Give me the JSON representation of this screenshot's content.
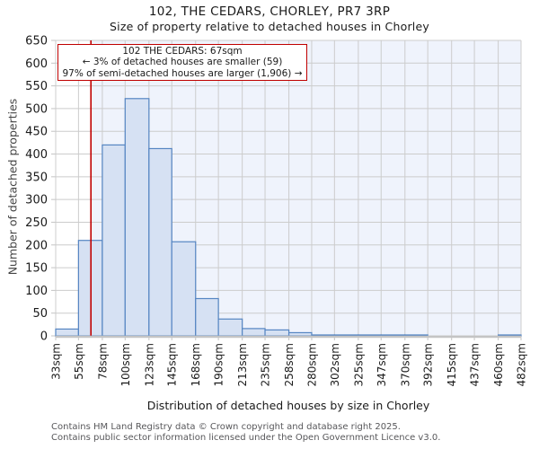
{
  "header": {
    "title": "102, THE CEDARS, CHORLEY, PR7 3RP",
    "subtitle": "Size of property relative to detached houses in Chorley"
  },
  "annotation": {
    "line1": "102 THE CEDARS: 67sqm",
    "line2": "← 3% of detached houses are smaller (59)",
    "line3": "97% of semi-detached houses are larger (1,906) →"
  },
  "footer": {
    "line1": "Contains HM Land Registry data © Crown copyright and database right 2025.",
    "line2": "Contains public sector information licensed under the Open Government Licence v3.0."
  },
  "chart_data": {
    "type": "bar",
    "title": "102, THE CEDARS, CHORLEY, PR7 3RP",
    "subtitle": "Size of property relative to detached houses in Chorley",
    "xlabel": "Distribution of detached houses by size in Chorley",
    "ylabel": "Number of detached properties",
    "categories": [
      "33sqm",
      "55sqm",
      "78sqm",
      "100sqm",
      "123sqm",
      "145sqm",
      "168sqm",
      "190sqm",
      "213sqm",
      "235sqm",
      "258sqm",
      "280sqm",
      "302sqm",
      "325sqm",
      "347sqm",
      "370sqm",
      "392sqm",
      "415sqm",
      "437sqm",
      "460sqm",
      "482sqm"
    ],
    "bin_edges_sqm": [
      33,
      55,
      78,
      100,
      123,
      145,
      168,
      190,
      213,
      235,
      258,
      280,
      302,
      325,
      347,
      370,
      392,
      415,
      437,
      460,
      482
    ],
    "values": [
      15,
      210,
      420,
      522,
      412,
      207,
      82,
      37,
      16,
      13,
      7,
      2,
      2,
      2,
      2,
      2,
      0,
      0,
      0,
      2
    ],
    "marker_sqm": 67,
    "marker_label": "102 THE CEDARS: 67sqm",
    "ylim": [
      0,
      650
    ],
    "ytick_step": 50,
    "grid": true,
    "legend": "none",
    "colors": {
      "bar_fill": "#d6e1f3",
      "bar_edge": "#5585c2",
      "marker_line": "#c00000",
      "annotation_border": "#c00000",
      "grid": "#cccccc",
      "shade_region": "#eff3fc",
      "axis_line": "#c4c4c4",
      "tick_text": "#1a1a1a",
      "footer_text": "#57575a"
    }
  }
}
